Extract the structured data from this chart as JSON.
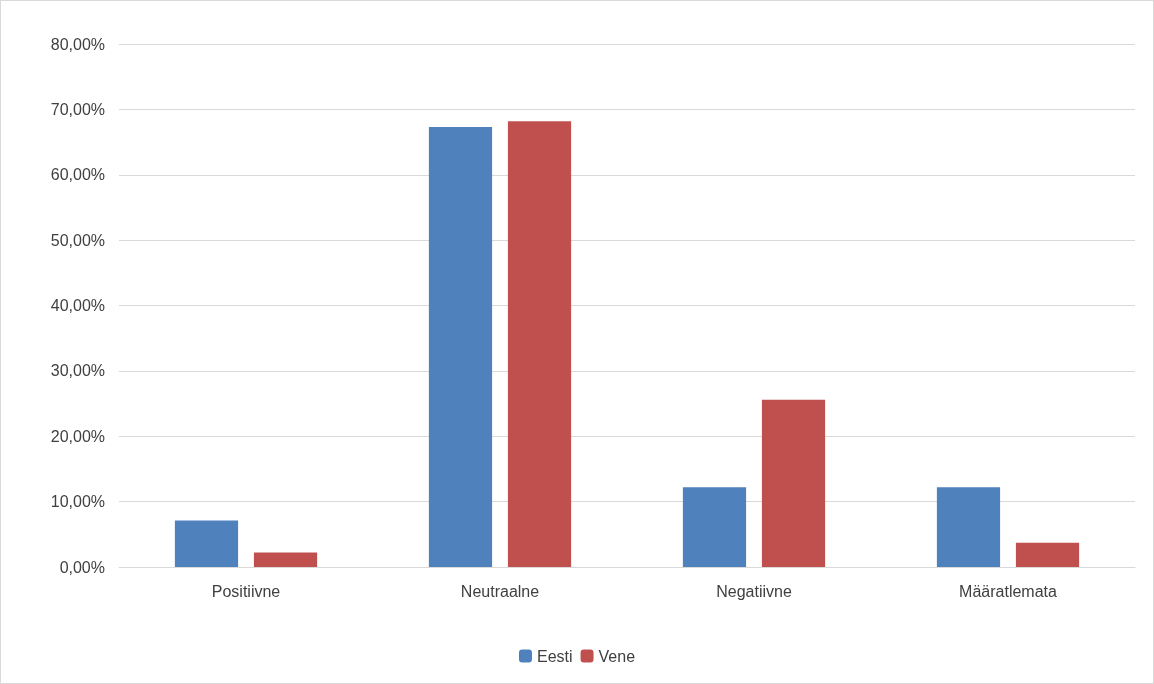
{
  "chart_data": {
    "type": "bar",
    "categories": [
      "Positiivne",
      "Neutraalne",
      "Negatiivne",
      "Määratlemata"
    ],
    "series": [
      {
        "name": "Eesti",
        "color": "#4f81bd",
        "values": [
          7.1,
          67.3,
          12.2,
          12.2
        ]
      },
      {
        "name": "Vene",
        "color": "#c0504d",
        "values": [
          2.2,
          68.2,
          25.6,
          3.7
        ]
      }
    ],
    "ylim": [
      0,
      80
    ],
    "yticks": [
      {
        "value": 0,
        "label": "0,00%"
      },
      {
        "value": 10,
        "label": "10,00%"
      },
      {
        "value": 20,
        "label": "20,00%"
      },
      {
        "value": 30,
        "label": "30,00%"
      },
      {
        "value": 40,
        "label": "40,00%"
      },
      {
        "value": 50,
        "label": "50,00%"
      },
      {
        "value": 60,
        "label": "60,00%"
      },
      {
        "value": 70,
        "label": "70,00%"
      },
      {
        "value": 80,
        "label": "80,00%"
      }
    ],
    "grid": true,
    "legend": "bottom"
  }
}
